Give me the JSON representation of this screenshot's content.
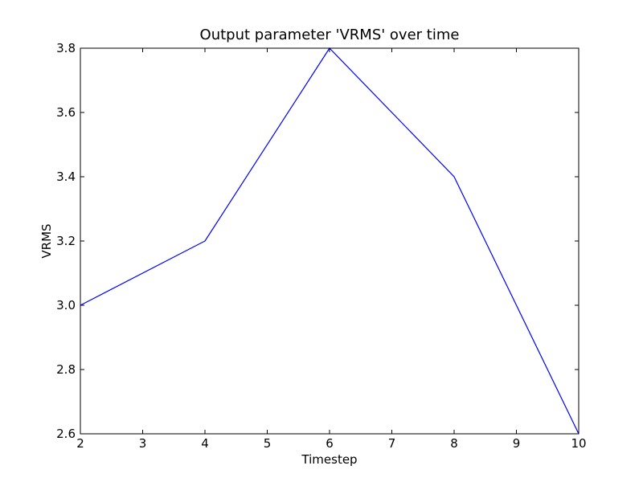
{
  "chart_data": {
    "type": "line",
    "title": "Output parameter 'VRMS' over time",
    "xlabel": "Timestep",
    "ylabel": "VRMS",
    "xlim": [
      2,
      10
    ],
    "ylim": [
      2.6,
      3.8
    ],
    "xticks": [
      2,
      3,
      4,
      5,
      6,
      7,
      8,
      9,
      10
    ],
    "yticks": [
      2.6,
      2.8,
      3.0,
      3.2,
      3.4,
      3.6,
      3.8
    ],
    "ytick_labels": [
      "2.6",
      "2.8",
      "3.0",
      "3.2",
      "3.4",
      "3.6",
      "3.8"
    ],
    "grid": false,
    "series": [
      {
        "color": "#0000ff",
        "x": [
          2,
          4,
          6,
          8,
          10
        ],
        "y": [
          3.0,
          3.2,
          3.8,
          3.4,
          2.6
        ]
      }
    ]
  }
}
